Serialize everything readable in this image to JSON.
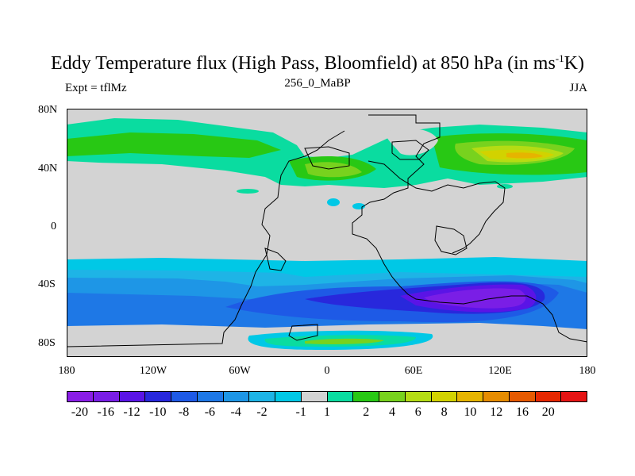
{
  "title": {
    "main": "Eddy Temperature flux (High Pass, Bloomfield) at 850 hPa (in ms",
    "sup": "-1",
    "end": "K)"
  },
  "left_label": "Expt = tflMz",
  "center_label": "256_0_MaBP",
  "right_label": "JJA",
  "map": {
    "background": "#d3d3d3",
    "y_ticks": [
      "80N",
      "40N",
      "0",
      "40S",
      "80S"
    ],
    "x_ticks": [
      "180",
      "120W",
      "60W",
      "0",
      "60E",
      "120E",
      "180"
    ]
  },
  "colorbar": {
    "colors": [
      "#8a1ee6",
      "#7a1ee6",
      "#5a14e6",
      "#2828dc",
      "#1e5ae6",
      "#1e78e6",
      "#1e96e6",
      "#1eb4e6",
      "#00c8e6",
      "#d3d3d3",
      "#0adca0",
      "#28c814",
      "#78d21e",
      "#b4dc14",
      "#d2d200",
      "#e6b400",
      "#e68c00",
      "#e65a00",
      "#e62800",
      "#e61414"
    ],
    "labels": [
      "-20",
      "-16",
      "-12",
      "-10",
      "-8",
      "-6",
      "-4",
      "-2",
      "-1",
      "1",
      "2",
      "4",
      "6",
      "8",
      "10",
      "12",
      "16",
      "20"
    ]
  }
}
